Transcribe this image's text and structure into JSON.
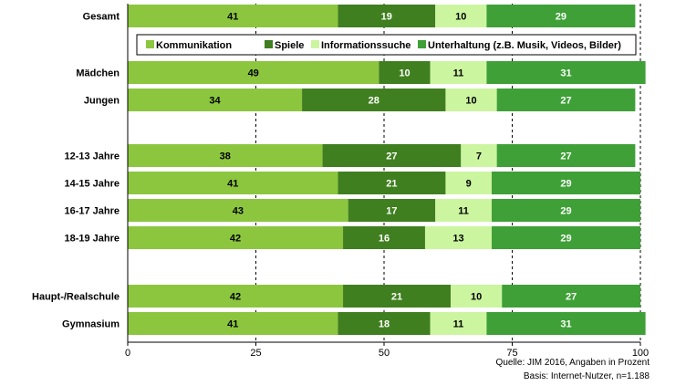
{
  "chart_data": {
    "type": "bar",
    "stacked": true,
    "horizontal": true,
    "categories": [
      "Gesamt",
      "Mädchen",
      "Jungen",
      "12-13 Jahre",
      "14-15 Jahre",
      "16-17 Jahre",
      "18-19 Jahre",
      "Haupt-/Realschule",
      "Gymnasium"
    ],
    "series": [
      {
        "name": "Kommunikation",
        "color": "#8cc63f",
        "label_color": "#000000",
        "values": [
          41,
          49,
          34,
          38,
          41,
          43,
          42,
          42,
          41
        ]
      },
      {
        "name": "Spiele",
        "color": "#3f7f1f",
        "label_color": "#ffffff",
        "values": [
          19,
          10,
          28,
          27,
          21,
          17,
          16,
          21,
          18
        ]
      },
      {
        "name": "Informationssuche",
        "color": "#ccf5a0",
        "label_color": "#000000",
        "values": [
          10,
          11,
          10,
          7,
          9,
          11,
          13,
          10,
          11
        ]
      },
      {
        "name": "Unterhaltung (z.B. Musik, Videos, Bilder)",
        "color": "#3ea037",
        "label_color": "#ffffff",
        "values": [
          29,
          31,
          27,
          27,
          29,
          29,
          29,
          27,
          31
        ]
      }
    ],
    "xlim": [
      0,
      100
    ],
    "xticks": [
      "0",
      "25",
      "50",
      "75",
      "100"
    ],
    "grid": "vertical dashed",
    "legend_position": "below-first-bar"
  },
  "source": {
    "line1": "Quelle: JIM 2016, Angaben in Prozent",
    "line2": "Basis: Internet-Nutzer, n=1.188"
  }
}
